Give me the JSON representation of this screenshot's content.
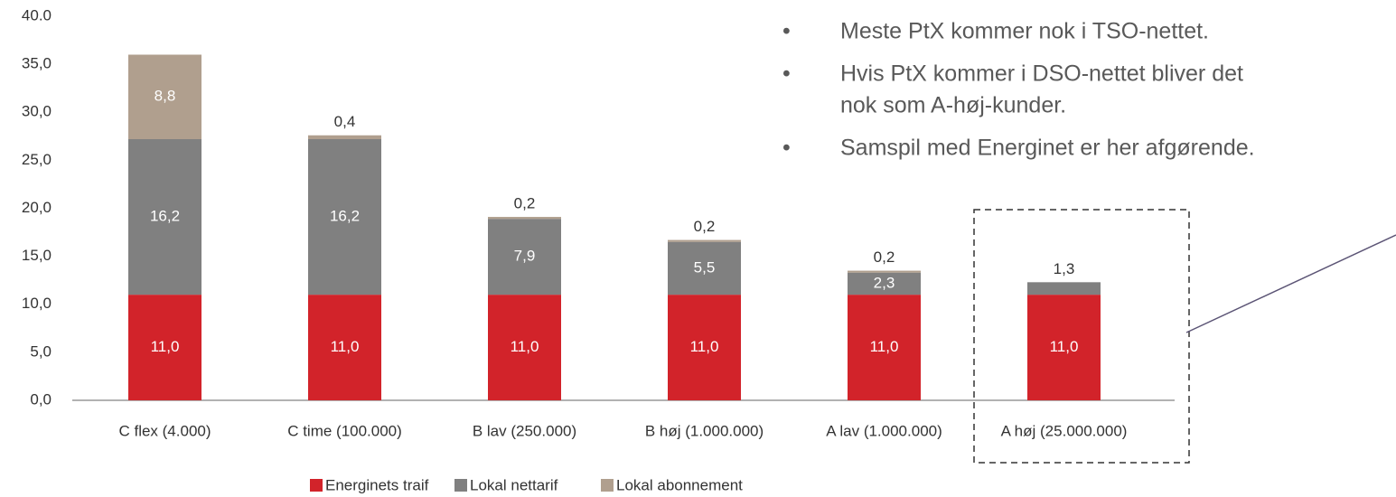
{
  "chart_data": {
    "type": "bar",
    "stacked": true,
    "categories": [
      "C flex (4.000)",
      "C time (100.000)",
      "B lav (250.000)",
      "B høj (1.000.000)",
      "A lav (1.000.000)",
      "A høj (25.000.000)"
    ],
    "series": [
      {
        "name": "Energinets traif",
        "color": "#d2232a",
        "values": [
          11.0,
          11.0,
          11.0,
          11.0,
          11.0,
          11.0
        ],
        "value_labels": [
          "11,0",
          "11,0",
          "11,0",
          "11,0",
          "11,0",
          "11,0"
        ]
      },
      {
        "name": "Lokal nettarif",
        "color": "#808080",
        "values": [
          16.2,
          16.2,
          7.9,
          5.5,
          2.3,
          1.3
        ],
        "value_labels": [
          "16,2",
          "16,2",
          "7,9",
          "5,5",
          "2,3",
          "1,3"
        ]
      },
      {
        "name": "Lokal abonnement",
        "color": "#b09f8e",
        "values": [
          8.8,
          0.4,
          0.2,
          0.2,
          0.2,
          null
        ],
        "value_labels": [
          "8,8",
          "0,4",
          "0,2",
          "0,2",
          "0,2",
          null
        ]
      }
    ],
    "ylim": [
      0,
      40
    ],
    "yticks": [
      {
        "value": 0,
        "label": "0,0"
      },
      {
        "value": 5,
        "label": "5,0"
      },
      {
        "value": 10,
        "label": "10,0"
      },
      {
        "value": 15,
        "label": "15,0"
      },
      {
        "value": 20,
        "label": "20,0"
      },
      {
        "value": 25,
        "label": "25,0"
      },
      {
        "value": 30,
        "label": "30,0"
      },
      {
        "value": 35,
        "label": "35,0"
      },
      {
        "value": 40,
        "label": "40.0"
      }
    ],
    "grid": false,
    "legend": "bottom",
    "annotations": [
      [
        "Meste PtX kommer nok i TSO-nettet."
      ],
      [
        "Hvis PtX kommer i DSO-nettet bliver det",
        "nok som A-høj-kunder."
      ],
      [
        "Samspil med Energinet er her afgørende."
      ]
    ]
  }
}
